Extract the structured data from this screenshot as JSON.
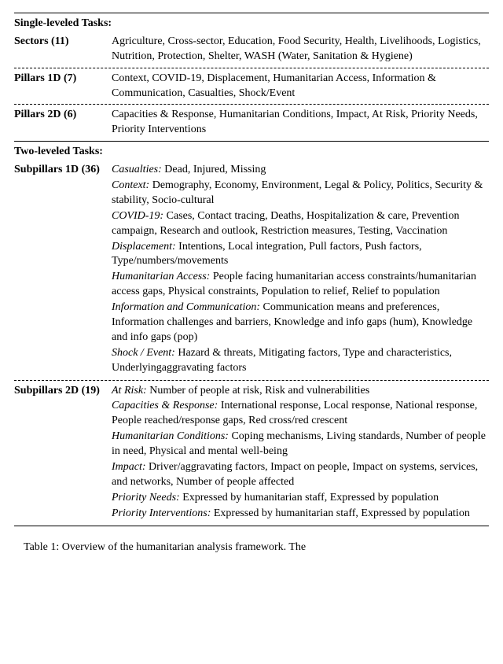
{
  "table": {
    "singleHeader": "Single-leveled Tasks:",
    "twoHeader": "Two-leveled Tasks:",
    "sectors": {
      "label": "Sectors (11)",
      "text": "Agriculture, Cross-sector, Education, Food Security, Health, Livelihoods, Logistics, Nutrition, Protection, Shelter, WASH (Water, Sanitation & Hygiene)"
    },
    "pillars1d": {
      "label": "Pillars 1D (7)",
      "text": "Context, COVID-19, Displacement, Humanitarian Access, Information & Communication, Casualties, Shock/Event"
    },
    "pillars2d": {
      "label": "Pillars 2D (6)",
      "text": "Capacities & Response, Humanitarian Conditions, Impact, At Risk, Priority Needs, Priority Interventions"
    },
    "subpillars1d": {
      "label": "Subpillars 1D (36)",
      "groups": [
        {
          "title": "Casualties:",
          "text": " Dead, Injured, Missing"
        },
        {
          "title": "Context:",
          "text": " Demography, Economy, Environment, Legal & Policy, Politics, Security & stability, Socio-cultural"
        },
        {
          "title": "COVID-19:",
          "text": " Cases, Contact tracing, Deaths, Hospitalization & care, Prevention campaign, Research and outlook, Restriction measures, Testing, Vaccination"
        },
        {
          "title": "Displacement:",
          "text": " Intentions, Local integration, Pull factors, Push factors, Type/numbers/movements"
        },
        {
          "title": "Humanitarian Access:",
          "text": " People facing humanitarian access constraints/humanitarian access gaps, Physical constraints, Population to relief, Relief to population"
        },
        {
          "title": "Information and Communication:",
          "text": " Communication means and preferences, Information challenges and barriers, Knowledge and info gaps (hum), Knowledge and info gaps (pop)"
        },
        {
          "title": "Shock / Event:",
          "text": " Hazard & threats, Mitigating factors, Type and characteristics, Underlyingaggravating factors"
        }
      ]
    },
    "subpillars2d": {
      "label": "Subpillars 2D (19)",
      "groups": [
        {
          "title": "At Risk:",
          "text": " Number of people at risk, Risk and vulnerabilities"
        },
        {
          "title": "Capacities & Response:",
          "text": " International response, Local response, National response, People reached/response gaps, Red cross/red crescent"
        },
        {
          "title": "Humanitarian Conditions:",
          "text": " Coping mechanisms, Living standards, Number of people in need, Physical and mental well-being"
        },
        {
          "title": "Impact:",
          "text": " Driver/aggravating factors, Impact on people, Impact on systems, services, and networks, Number of people affected"
        },
        {
          "title": "Priority Needs:",
          "text": " Expressed by humanitarian staff, Expressed by population"
        },
        {
          "title": "Priority Interventions:",
          "text": " Expressed by humanitarian staff, Expressed by population"
        }
      ]
    }
  },
  "caption": {
    "prefix": "Table 1: ",
    "text": "Overview of the humanitarian analysis framework. The"
  }
}
